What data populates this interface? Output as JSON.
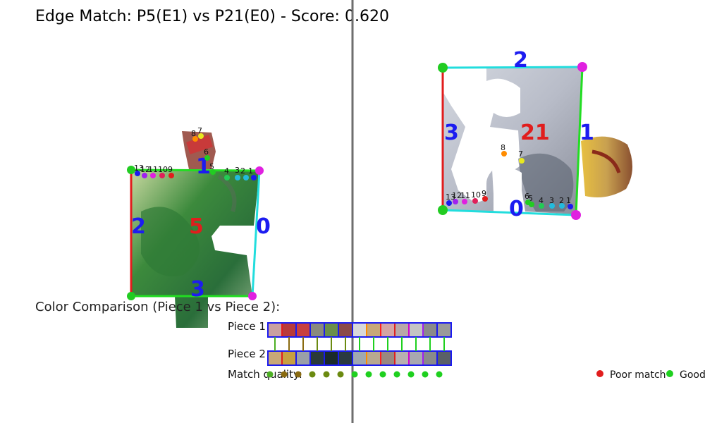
{
  "title": "Edge Match: P5(E1) vs P21(E0) - Score: 0.620",
  "piece_left": {
    "piece_label": "5",
    "edge_labels": [
      "0",
      "1",
      "2",
      "3"
    ],
    "point_labels": [
      "1",
      "2",
      "3",
      "4",
      "5",
      "6",
      "7",
      "8",
      "9",
      "10",
      "11",
      "12",
      "13"
    ]
  },
  "piece_right": {
    "piece_label": "21",
    "edge_labels": [
      "0",
      "1",
      "2",
      "3"
    ],
    "point_labels": [
      "1",
      "2",
      "3",
      "4",
      "5",
      "6",
      "7",
      "8",
      "9",
      "10",
      "11",
      "12",
      "13"
    ]
  },
  "color_comparison": {
    "title": "Color Comparison (Piece 1 vs Piece 2):",
    "piece1_label": "Piece 1",
    "piece2_label": "Piece 2",
    "match_label": "Match quality:",
    "piece1_swatches": [
      "#c9a0a0",
      "#b83a3a",
      "#c84040",
      "#8a8a7e",
      "#6b8f4a",
      "#8b4a4a",
      "#d8d8d8",
      "#c8a878",
      "#d4a4a4",
      "#b8a8a8",
      "#c4c4c4",
      "#8a8a8a",
      "#9a9a9a"
    ],
    "piece2_swatches": [
      "#c8a878",
      "#c8a040",
      "#9aa0a8",
      "#2a3a3a",
      "#1a2a2a",
      "#2a3a40",
      "#a0a8b0",
      "#b8a890",
      "#9a8880",
      "#b8b0b0",
      "#a8a8b0",
      "#8a8a8a",
      "#5a6068"
    ],
    "border_colors": [
      "#1a1af0",
      "#e11d1d",
      "#1a1af0",
      "#1a1af0",
      "#1a1af0",
      "#1a1af0",
      "#1a1af0",
      "#ff8c00",
      "#ff2020",
      "#e02020",
      "#d000d0",
      "#a020f0",
      "#1a1af0"
    ],
    "match_colors": [
      "#4caf23",
      "#8a6b10",
      "#8a6b10",
      "#6b8a10",
      "#6b8a10",
      "#6b8a10",
      "#1fd01f",
      "#1fd01f",
      "#1fd01f",
      "#1fd01f",
      "#1fd01f",
      "#1fd01f",
      "#1fd01f"
    ]
  },
  "legend": {
    "poor_label": "Poor match",
    "good_label": "Good",
    "poor_color": "#e11d1d",
    "good_color": "#1fd01f"
  },
  "colors": {
    "divider": "#6e6e6e",
    "edge_red": "#e11d1d",
    "edge_green": "#22dd22",
    "edge_cyan": "#22dddd",
    "corner_magenta": "#e020e0",
    "corner_green": "#22cc22"
  }
}
